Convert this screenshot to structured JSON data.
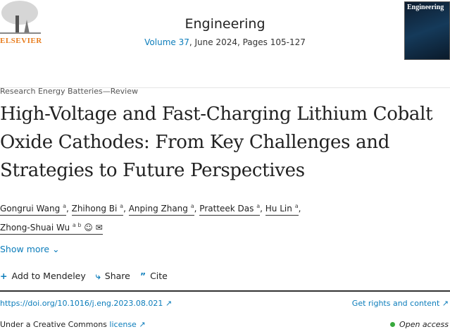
{
  "publisher": {
    "logo_text": "ELSEVIER"
  },
  "journal": {
    "name": "Engineering",
    "volume_link": "Volume 37",
    "volume_rest": ", June 2024, Pages 105-127",
    "cover_text": "Engineering"
  },
  "article": {
    "category": "Research Energy Batteries—Review",
    "title": "High-Voltage and Fast-Charging Lithium Cobalt Oxide Cathodes: From Key Challenges and Strategies to Future Perspectives",
    "authors": [
      {
        "name": "Gongrui Wang",
        "aff": "a"
      },
      {
        "name": "Zhihong Bi",
        "aff": "a"
      },
      {
        "name": "Anping Zhang",
        "aff": "a"
      },
      {
        "name": "Pratteek Das",
        "aff": "a"
      },
      {
        "name": "Hu Lin",
        "aff": "a"
      },
      {
        "name": "Zhong-Shuai Wu",
        "aff": "a b"
      }
    ],
    "show_more": "Show more",
    "actions": {
      "mendeley": "Add to Mendeley",
      "share": "Share",
      "cite": "Cite"
    },
    "doi": "https://doi.org/10.1016/j.eng.2023.08.021",
    "rights": "Get rights and content",
    "license_prefix": "Under a Creative Commons ",
    "license_link": "license",
    "open_access": "Open access"
  },
  "colors": {
    "link": "#0c7dbb",
    "elsevier": "#e87d1e",
    "open_access": "#37a93c"
  }
}
